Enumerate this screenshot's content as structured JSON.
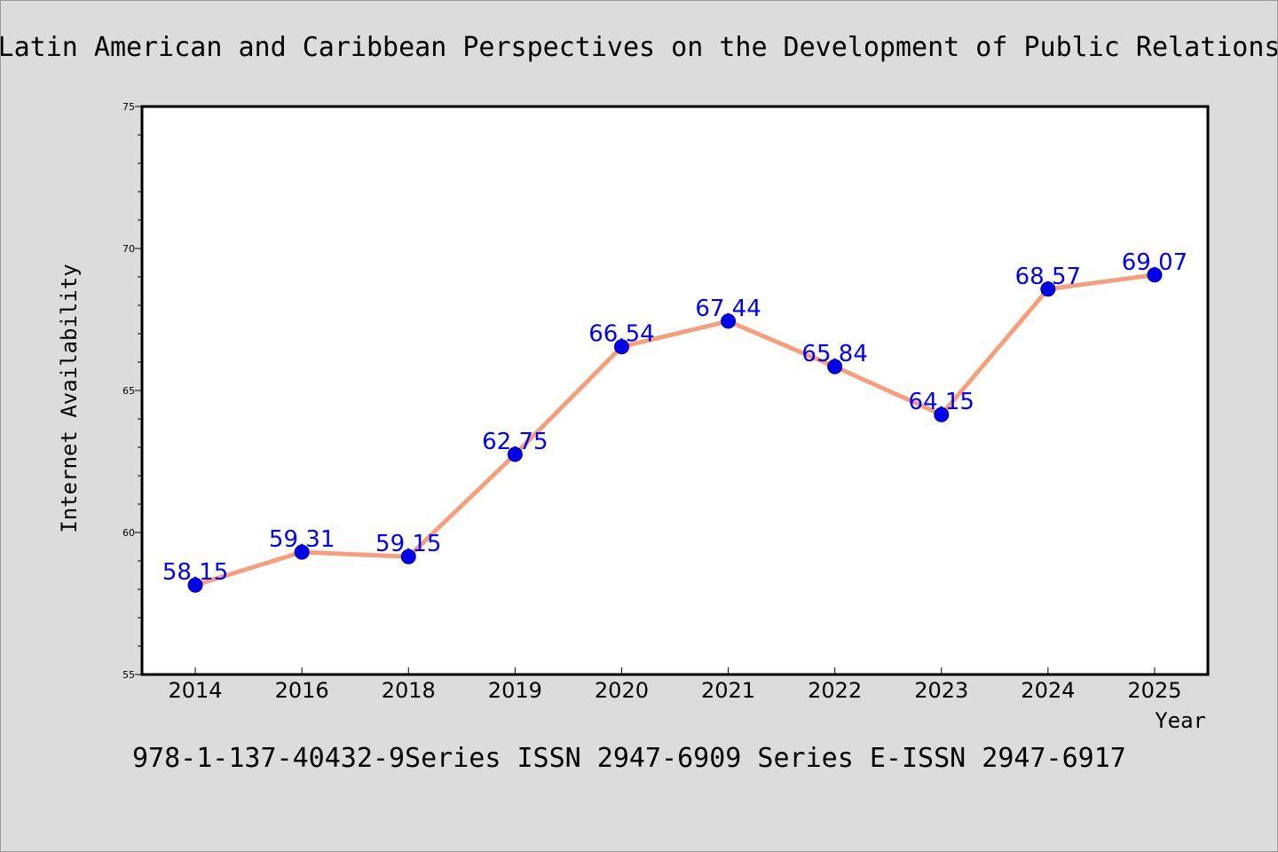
{
  "chart_data": {
    "type": "line",
    "title": "Latin American and Caribbean Perspectives on the Development of Public Relations",
    "xlabel": "Year",
    "ylabel": "Internet Availability",
    "categories": [
      "2014",
      "2016",
      "2018",
      "2019",
      "2020",
      "2021",
      "2022",
      "2023",
      "2024",
      "2025"
    ],
    "values": [
      58.15,
      59.31,
      59.15,
      62.75,
      66.54,
      67.44,
      65.84,
      64.15,
      68.57,
      69.07
    ],
    "data_labels": [
      "58.15",
      "59.31",
      "59.15",
      "62.75",
      "66.54",
      "67.44",
      "65.84",
      "64.15",
      "68.57",
      "69.07"
    ],
    "ylim": [
      55,
      75
    ],
    "yticks": [
      55,
      60,
      65,
      70,
      75
    ],
    "y_minor_step": 1,
    "grid": false,
    "legend": "none",
    "colors": {
      "line": "#f4a07e",
      "marker": "#0000ee",
      "marker_edge": "#000080",
      "label": "#0000ee",
      "axis": "#000000",
      "plot_bg": "#ffffff",
      "page_bg": "#dcdcdc"
    },
    "footer": "978-1-137-40432-9Series ISSN 2947-6909 Series E-ISSN 2947-6917"
  }
}
